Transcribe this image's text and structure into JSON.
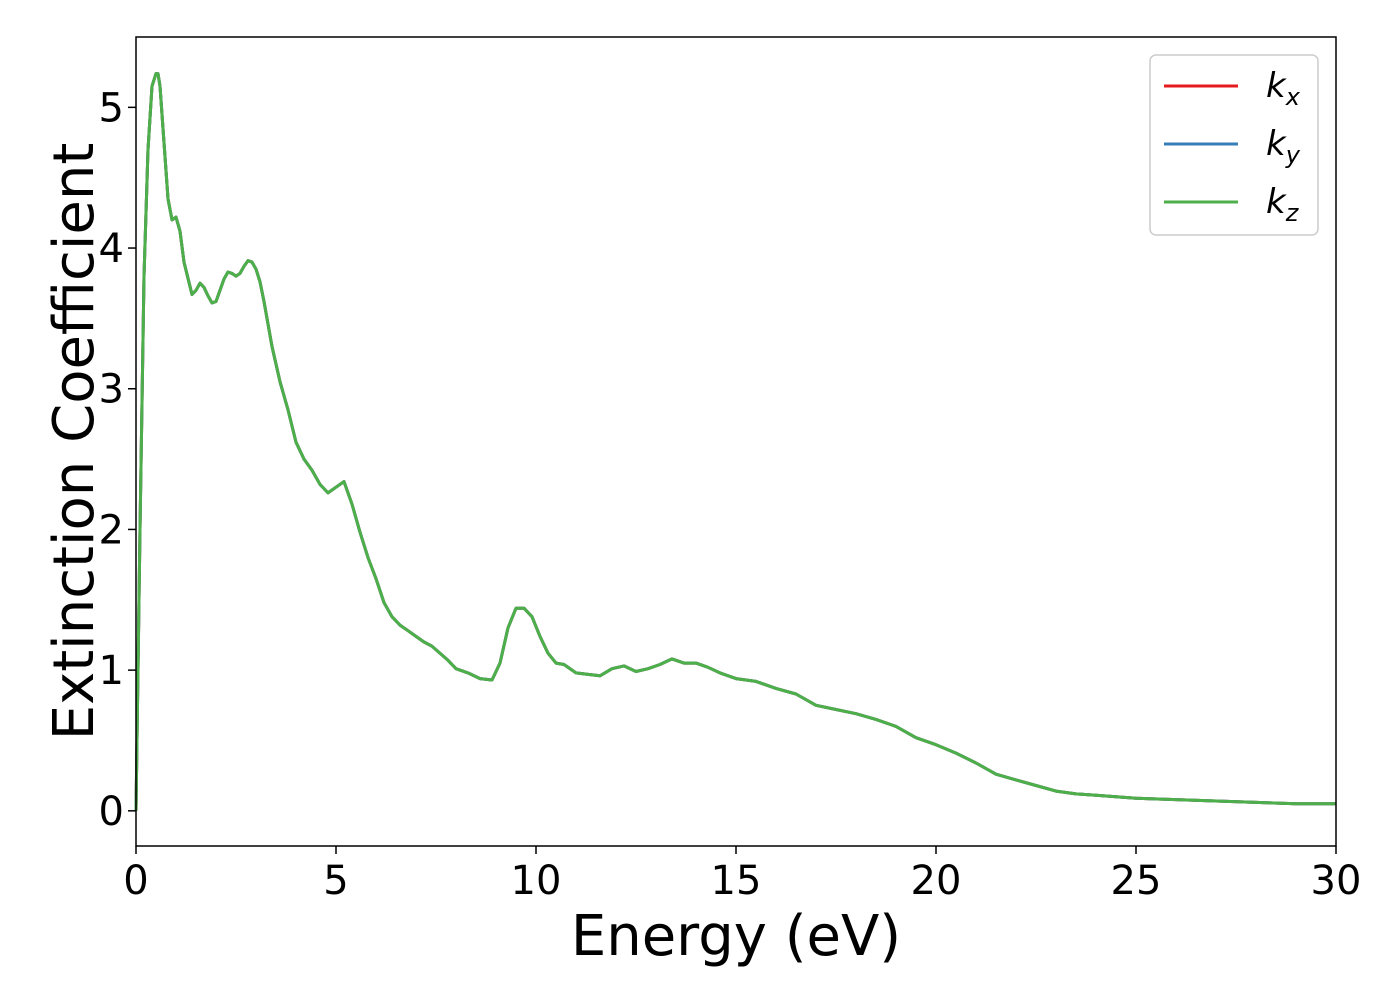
{
  "chart_data": {
    "type": "line",
    "title": "",
    "xlabel": "Energy (eV)",
    "ylabel": "Extinction Coefficient",
    "xlim": [
      0,
      30
    ],
    "ylim": [
      -0.25,
      5.5
    ],
    "xticks": [
      0,
      5,
      10,
      15,
      20,
      25,
      30
    ],
    "yticks": [
      0,
      1,
      2,
      3,
      4,
      5
    ],
    "grid": false,
    "legend_position": "top-right",
    "series": [
      {
        "name": "k_x",
        "color": "#e41a1c",
        "x": [
          0,
          0.1,
          0.2,
          0.3,
          0.4,
          0.5,
          0.55,
          0.6,
          0.7,
          0.8,
          0.9,
          1.0,
          1.1,
          1.2,
          1.4,
          1.5,
          1.6,
          1.7,
          1.8,
          1.9,
          2.0,
          2.1,
          2.2,
          2.3,
          2.4,
          2.5,
          2.6,
          2.7,
          2.8,
          2.9,
          3.0,
          3.1,
          3.2,
          3.4,
          3.6,
          3.8,
          4.0,
          4.2,
          4.4,
          4.6,
          4.8,
          5.0,
          5.2,
          5.4,
          5.6,
          5.8,
          6.0,
          6.2,
          6.4,
          6.6,
          6.8,
          7.0,
          7.2,
          7.4,
          7.6,
          7.8,
          8.0,
          8.3,
          8.6,
          8.9,
          9.1,
          9.3,
          9.5,
          9.7,
          9.9,
          10.1,
          10.3,
          10.5,
          10.7,
          11.0,
          11.3,
          11.6,
          11.9,
          12.2,
          12.5,
          12.8,
          13.1,
          13.4,
          13.7,
          14.0,
          14.3,
          14.6,
          15.0,
          15.5,
          16.0,
          16.5,
          17.0,
          17.5,
          18.0,
          18.5,
          19.0,
          19.5,
          20.0,
          20.5,
          21.0,
          21.5,
          22.0,
          22.5,
          23.0,
          23.5,
          24.0,
          24.5,
          25.0,
          26.0,
          27.0,
          28.0,
          29.0,
          30.0
        ],
        "y": [
          0.0,
          2.0,
          3.8,
          4.7,
          5.15,
          5.24,
          5.24,
          5.15,
          4.75,
          4.35,
          4.2,
          4.22,
          4.12,
          3.9,
          3.67,
          3.7,
          3.75,
          3.72,
          3.66,
          3.61,
          3.62,
          3.7,
          3.78,
          3.83,
          3.82,
          3.8,
          3.82,
          3.87,
          3.91,
          3.9,
          3.85,
          3.76,
          3.62,
          3.3,
          3.05,
          2.85,
          2.62,
          2.5,
          2.42,
          2.32,
          2.26,
          2.3,
          2.34,
          2.18,
          1.98,
          1.8,
          1.65,
          1.48,
          1.38,
          1.32,
          1.28,
          1.24,
          1.2,
          1.17,
          1.12,
          1.07,
          1.01,
          0.98,
          0.94,
          0.93,
          1.05,
          1.3,
          1.44,
          1.44,
          1.38,
          1.24,
          1.12,
          1.05,
          1.04,
          0.98,
          0.97,
          0.96,
          1.01,
          1.03,
          0.99,
          1.01,
          1.04,
          1.08,
          1.05,
          1.05,
          1.02,
          0.98,
          0.94,
          0.92,
          0.87,
          0.83,
          0.75,
          0.72,
          0.69,
          0.65,
          0.6,
          0.52,
          0.47,
          0.41,
          0.34,
          0.26,
          0.22,
          0.18,
          0.14,
          0.12,
          0.11,
          0.1,
          0.09,
          0.08,
          0.07,
          0.06,
          0.05,
          0.05
        ]
      },
      {
        "name": "k_y",
        "color": "#377eb8",
        "x": [
          0,
          0.1,
          0.2,
          0.3,
          0.4,
          0.5,
          0.55,
          0.6,
          0.7,
          0.8,
          0.9,
          1.0,
          1.1,
          1.2,
          1.4,
          1.5,
          1.6,
          1.7,
          1.8,
          1.9,
          2.0,
          2.1,
          2.2,
          2.3,
          2.4,
          2.5,
          2.6,
          2.7,
          2.8,
          2.9,
          3.0,
          3.1,
          3.2,
          3.4,
          3.6,
          3.8,
          4.0,
          4.2,
          4.4,
          4.6,
          4.8,
          5.0,
          5.2,
          5.4,
          5.6,
          5.8,
          6.0,
          6.2,
          6.4,
          6.6,
          6.8,
          7.0,
          7.2,
          7.4,
          7.6,
          7.8,
          8.0,
          8.3,
          8.6,
          8.9,
          9.1,
          9.3,
          9.5,
          9.7,
          9.9,
          10.1,
          10.3,
          10.5,
          10.7,
          11.0,
          11.3,
          11.6,
          11.9,
          12.2,
          12.5,
          12.8,
          13.1,
          13.4,
          13.7,
          14.0,
          14.3,
          14.6,
          15.0,
          15.5,
          16.0,
          16.5,
          17.0,
          17.5,
          18.0,
          18.5,
          19.0,
          19.5,
          20.0,
          20.5,
          21.0,
          21.5,
          22.0,
          22.5,
          23.0,
          23.5,
          24.0,
          24.5,
          25.0,
          26.0,
          27.0,
          28.0,
          29.0,
          30.0
        ],
        "y": [
          0.0,
          2.0,
          3.8,
          4.7,
          5.15,
          5.24,
          5.24,
          5.15,
          4.75,
          4.35,
          4.2,
          4.22,
          4.12,
          3.9,
          3.67,
          3.7,
          3.75,
          3.72,
          3.66,
          3.61,
          3.62,
          3.7,
          3.78,
          3.83,
          3.82,
          3.8,
          3.82,
          3.87,
          3.91,
          3.9,
          3.85,
          3.76,
          3.62,
          3.3,
          3.05,
          2.85,
          2.62,
          2.5,
          2.42,
          2.32,
          2.26,
          2.3,
          2.34,
          2.18,
          1.98,
          1.8,
          1.65,
          1.48,
          1.38,
          1.32,
          1.28,
          1.24,
          1.2,
          1.17,
          1.12,
          1.07,
          1.01,
          0.98,
          0.94,
          0.93,
          1.05,
          1.3,
          1.44,
          1.44,
          1.38,
          1.24,
          1.12,
          1.05,
          1.04,
          0.98,
          0.97,
          0.96,
          1.01,
          1.03,
          0.99,
          1.01,
          1.04,
          1.08,
          1.05,
          1.05,
          1.02,
          0.98,
          0.94,
          0.92,
          0.87,
          0.83,
          0.75,
          0.72,
          0.69,
          0.65,
          0.6,
          0.52,
          0.47,
          0.41,
          0.34,
          0.26,
          0.22,
          0.18,
          0.14,
          0.12,
          0.11,
          0.1,
          0.09,
          0.08,
          0.07,
          0.06,
          0.05,
          0.05
        ]
      },
      {
        "name": "k_z",
        "color": "#4daf4a",
        "x": [
          0,
          0.1,
          0.2,
          0.3,
          0.4,
          0.5,
          0.55,
          0.6,
          0.7,
          0.8,
          0.9,
          1.0,
          1.1,
          1.2,
          1.4,
          1.5,
          1.6,
          1.7,
          1.8,
          1.9,
          2.0,
          2.1,
          2.2,
          2.3,
          2.4,
          2.5,
          2.6,
          2.7,
          2.8,
          2.9,
          3.0,
          3.1,
          3.2,
          3.4,
          3.6,
          3.8,
          4.0,
          4.2,
          4.4,
          4.6,
          4.8,
          5.0,
          5.2,
          5.4,
          5.6,
          5.8,
          6.0,
          6.2,
          6.4,
          6.6,
          6.8,
          7.0,
          7.2,
          7.4,
          7.6,
          7.8,
          8.0,
          8.3,
          8.6,
          8.9,
          9.1,
          9.3,
          9.5,
          9.7,
          9.9,
          10.1,
          10.3,
          10.5,
          10.7,
          11.0,
          11.3,
          11.6,
          11.9,
          12.2,
          12.5,
          12.8,
          13.1,
          13.4,
          13.7,
          14.0,
          14.3,
          14.6,
          15.0,
          15.5,
          16.0,
          16.5,
          17.0,
          17.5,
          18.0,
          18.5,
          19.0,
          19.5,
          20.0,
          20.5,
          21.0,
          21.5,
          22.0,
          22.5,
          23.0,
          23.5,
          24.0,
          24.5,
          25.0,
          26.0,
          27.0,
          28.0,
          29.0,
          30.0
        ],
        "y": [
          0.0,
          2.0,
          3.8,
          4.7,
          5.15,
          5.24,
          5.24,
          5.15,
          4.75,
          4.35,
          4.2,
          4.22,
          4.12,
          3.9,
          3.67,
          3.7,
          3.75,
          3.72,
          3.66,
          3.61,
          3.62,
          3.7,
          3.78,
          3.83,
          3.82,
          3.8,
          3.82,
          3.87,
          3.91,
          3.9,
          3.85,
          3.76,
          3.62,
          3.3,
          3.05,
          2.85,
          2.62,
          2.5,
          2.42,
          2.32,
          2.26,
          2.3,
          2.34,
          2.18,
          1.98,
          1.8,
          1.65,
          1.48,
          1.38,
          1.32,
          1.28,
          1.24,
          1.2,
          1.17,
          1.12,
          1.07,
          1.01,
          0.98,
          0.94,
          0.93,
          1.05,
          1.3,
          1.44,
          1.44,
          1.38,
          1.24,
          1.12,
          1.05,
          1.04,
          0.98,
          0.97,
          0.96,
          1.01,
          1.03,
          0.99,
          1.01,
          1.04,
          1.08,
          1.05,
          1.05,
          1.02,
          0.98,
          0.94,
          0.92,
          0.87,
          0.83,
          0.75,
          0.72,
          0.69,
          0.65,
          0.6,
          0.52,
          0.47,
          0.41,
          0.34,
          0.26,
          0.22,
          0.18,
          0.14,
          0.12,
          0.11,
          0.1,
          0.09,
          0.08,
          0.07,
          0.06,
          0.05,
          0.05
        ]
      }
    ],
    "legend": [
      {
        "base": "k",
        "sub": "x",
        "color": "#e41a1c"
      },
      {
        "base": "k",
        "sub": "y",
        "color": "#377eb8"
      },
      {
        "base": "k",
        "sub": "z",
        "color": "#4daf4a"
      }
    ]
  }
}
